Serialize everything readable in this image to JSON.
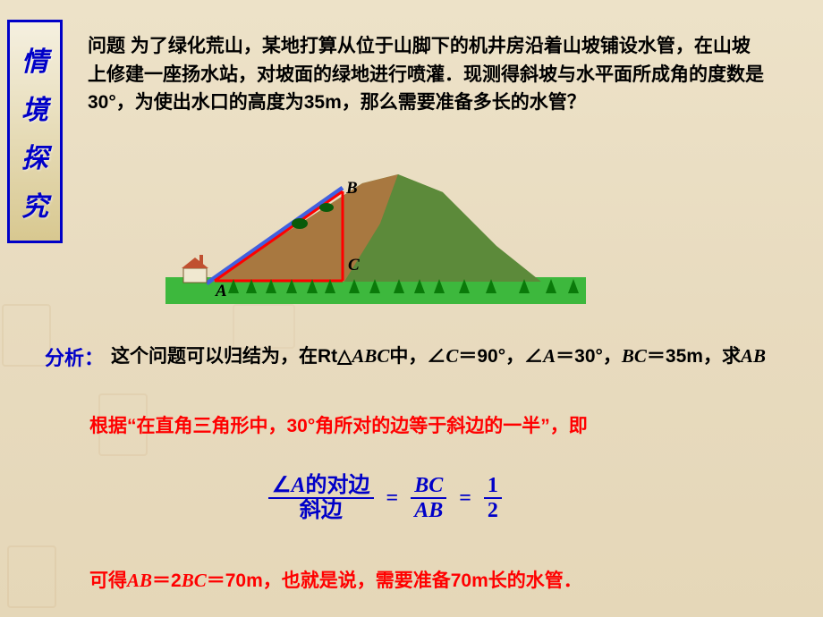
{
  "sidebar": {
    "c1": "情",
    "c2": "境",
    "c3": "探",
    "c4": "究"
  },
  "problem": "问题 为了绿化荒山，某地打算从位于山脚下的机井房沿着山坡铺设水管，在山坡上修建一座扬水站，对坡面的绿地进行喷灌．现测得斜坡与水平面所成角的度数是30°，为使出水口的高度为35m，那么需要准备多长的水管？",
  "labels": {
    "A": "A",
    "B": "B",
    "C": "C"
  },
  "analysis_label": "分析：",
  "analysis_body": "这个问题可以归结为，在Rt△<i>ABC</i>中，∠<i>C</i>＝90°，∠<i>A</i>＝30°，<i>BC</i>＝35m，求<i>AB</i>",
  "rule": "根据“在直角三角形中，30°角所对的边等于斜边的一半”，即",
  "formula": {
    "f1_num": "∠<i>A</i>的对边",
    "f1_den": "斜边",
    "f2_num": "<i>BC</i>",
    "f2_den": "<i>AB</i>",
    "f3_num": "1",
    "f3_den": "2"
  },
  "conclusion": "可得<i>AB</i>＝2<i>BC</i>＝70m，也就是说，需要准备70m长的水管．",
  "colors": {
    "blue": "#0000c8",
    "red": "#ff0000",
    "grass": "#3db83d",
    "mountain_dark": "#5c8a3a",
    "mountain_brown": "#a87840",
    "pipe": "#4060e0",
    "triangle_line": "#ff0000"
  }
}
